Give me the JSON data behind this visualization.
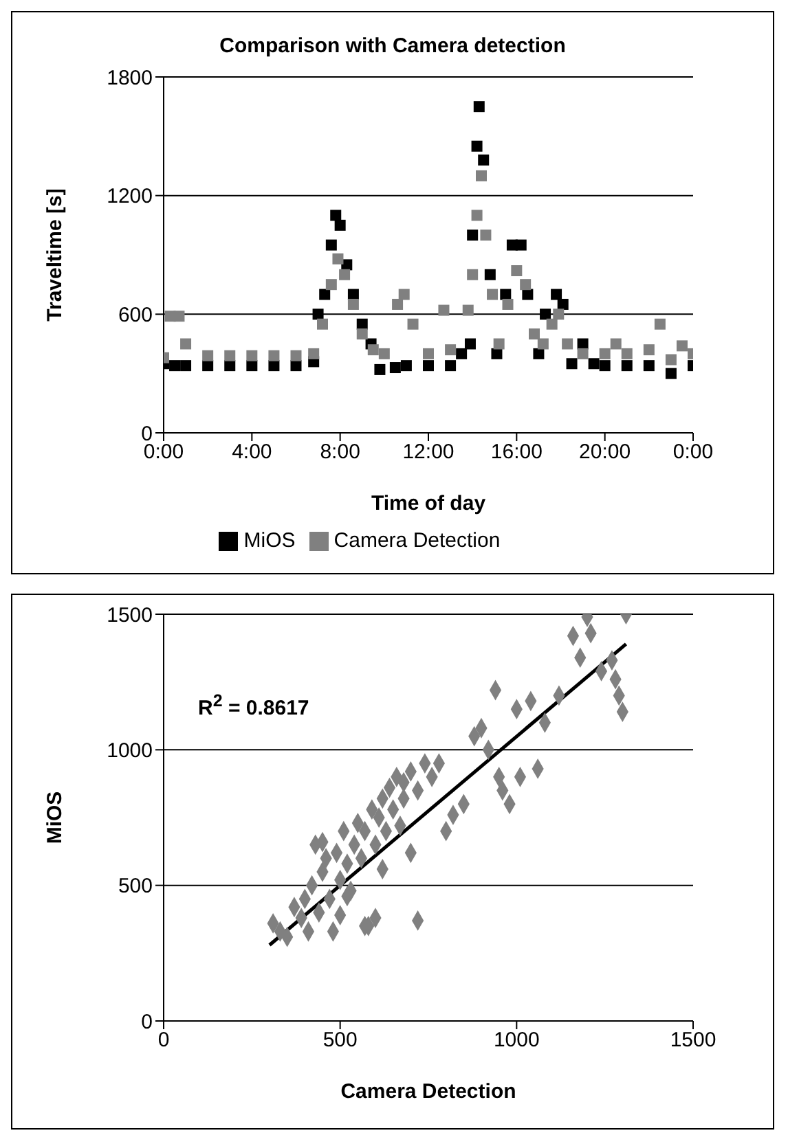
{
  "chart_data": [
    {
      "type": "scatter",
      "title": "Comparison with Camera detection",
      "xlabel": "Time of day",
      "ylabel": "Traveltime [s]",
      "xlim": [
        0,
        24
      ],
      "xticks": [
        {
          "value": 0,
          "label": "0:00"
        },
        {
          "value": 4,
          "label": "4:00"
        },
        {
          "value": 8,
          "label": "8:00"
        },
        {
          "value": 12,
          "label": "12:00"
        },
        {
          "value": 16,
          "label": "16:00"
        },
        {
          "value": 20,
          "label": "20:00"
        },
        {
          "value": 24,
          "label": "0:00"
        }
      ],
      "ylim": [
        0,
        1800
      ],
      "yticks": [
        0,
        600,
        1200,
        1800
      ],
      "grid": "y",
      "legend": "bottom",
      "marker": "square",
      "series": [
        {
          "name": "MiOS",
          "color": "#000000",
          "x": [
            0,
            0.5,
            1,
            2,
            3,
            4,
            5,
            6,
            6.8,
            7,
            7.3,
            7.6,
            7.8,
            8,
            8.3,
            8.6,
            9,
            9.4,
            9.8,
            10.5,
            11,
            12,
            13,
            13.5,
            13.9,
            14,
            14.2,
            14.3,
            14.5,
            14.8,
            15.1,
            15.5,
            15.8,
            16.2,
            16.5,
            17,
            17.3,
            17.8,
            18.1,
            18.5,
            19,
            19.5,
            20,
            21,
            22,
            23,
            24
          ],
          "values": [
            350,
            340,
            340,
            340,
            340,
            340,
            340,
            340,
            360,
            600,
            700,
            950,
            1100,
            1050,
            850,
            700,
            550,
            450,
            320,
            330,
            340,
            340,
            340,
            400,
            450,
            1000,
            1450,
            1650,
            1380,
            800,
            400,
            700,
            950,
            950,
            700,
            400,
            600,
            700,
            650,
            350,
            450,
            350,
            340,
            340,
            340,
            300,
            340
          ]
        },
        {
          "name": "Camera Detection",
          "color": "#808080",
          "x": [
            0,
            0.3,
            0.7,
            1,
            2,
            3,
            4,
            5,
            6,
            6.8,
            7.2,
            7.6,
            7.9,
            8.2,
            8.6,
            9,
            9.5,
            10,
            10.6,
            10.9,
            11.3,
            12,
            12.7,
            13,
            13.8,
            14,
            14.2,
            14.4,
            14.6,
            14.9,
            15.2,
            15.6,
            16,
            16.4,
            16.8,
            17.2,
            17.6,
            17.9,
            18.3,
            19,
            20,
            20.5,
            21,
            22,
            22.5,
            23,
            23.5,
            24
          ],
          "values": [
            380,
            590,
            590,
            450,
            390,
            390,
            390,
            390,
            390,
            400,
            550,
            750,
            880,
            800,
            650,
            500,
            420,
            400,
            650,
            700,
            550,
            400,
            620,
            420,
            620,
            800,
            1100,
            1300,
            1000,
            700,
            450,
            650,
            820,
            750,
            500,
            450,
            550,
            600,
            450,
            400,
            400,
            450,
            400,
            420,
            550,
            370,
            440,
            400
          ]
        }
      ]
    },
    {
      "type": "scatter",
      "xlabel": "Camera Detection",
      "ylabel": "MiOS",
      "xlim": [
        0,
        1500
      ],
      "xticks": [
        0,
        500,
        1000,
        1500
      ],
      "ylim": [
        0,
        1500
      ],
      "yticks": [
        0,
        500,
        1000,
        1500
      ],
      "grid": "y",
      "marker": "diamond",
      "annotations": [
        "R$^{2}$ = 0.8617"
      ],
      "series": [
        {
          "color": "#808080",
          "x": [
            310,
            330,
            350,
            370,
            390,
            400,
            410,
            420,
            430,
            440,
            450,
            460,
            470,
            480,
            490,
            500,
            510,
            520,
            530,
            540,
            550,
            560,
            570,
            580,
            590,
            600,
            610,
            620,
            630,
            640,
            650,
            660,
            670,
            680,
            700,
            720,
            740,
            760,
            780,
            800,
            820,
            850,
            880,
            900,
            920,
            940,
            950,
            960,
            980,
            1000,
            1010,
            1040,
            1060,
            1080,
            1120,
            1160,
            1180,
            1200,
            1210,
            1240,
            1270,
            1280,
            1290,
            1300,
            1310,
            600,
            570,
            720,
            450,
            500,
            520,
            680,
            700,
            620
          ],
          "values": [
            360,
            330,
            310,
            420,
            380,
            450,
            330,
            500,
            650,
            400,
            550,
            600,
            450,
            330,
            620,
            520,
            700,
            580,
            480,
            650,
            730,
            600,
            700,
            350,
            780,
            650,
            750,
            820,
            700,
            860,
            780,
            900,
            720,
            880,
            920,
            850,
            950,
            900,
            950,
            700,
            760,
            800,
            1050,
            1080,
            1000,
            1220,
            900,
            850,
            800,
            1150,
            900,
            1180,
            930,
            1100,
            1200,
            1420,
            1340,
            1490,
            1430,
            1290,
            1330,
            1260,
            1200,
            1140,
            1500,
            380,
            350,
            370,
            660,
            390,
            460,
            820,
            620,
            560
          ]
        },
        {
          "type": "line",
          "color": "#000000",
          "marker": "none",
          "x": [
            300,
            1310
          ],
          "values": [
            280,
            1390
          ]
        }
      ]
    }
  ]
}
